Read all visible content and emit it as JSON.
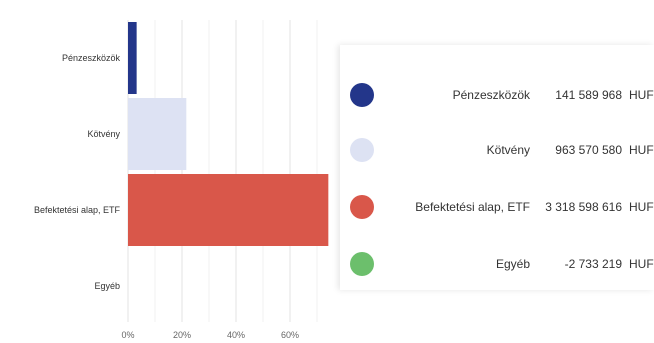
{
  "chart_data": {
    "type": "bar",
    "orientation": "horizontal",
    "categories": [
      "Pénzeszközök",
      "Kötvény",
      "Befektetési alap, ETF",
      "Egyéb"
    ],
    "values": [
      3.2,
      21.6,
      74.2,
      -0.06
    ],
    "x_ticks": [
      "0%",
      "20%",
      "40%",
      "60%"
    ],
    "xlim": [
      0,
      75
    ],
    "grid": true,
    "colors": [
      "#23368a",
      "#dde2f3",
      "#d9574a",
      "#6cbf6c"
    ]
  },
  "legend": {
    "items": [
      {
        "name": "Pénzeszközök",
        "value": "141 589 968",
        "unit": "HUF",
        "color": "#23368a"
      },
      {
        "name": "Kötvény",
        "value": "963 570 580",
        "unit": "HUF",
        "color": "#dde2f3"
      },
      {
        "name": "Befektetési alap, ETF",
        "value": "3 318 598 616",
        "unit": "HUF",
        "color": "#d9574a"
      },
      {
        "name": "Egyéb",
        "value": "-2 733 219",
        "unit": "HUF",
        "color": "#6cbf6c"
      }
    ]
  }
}
